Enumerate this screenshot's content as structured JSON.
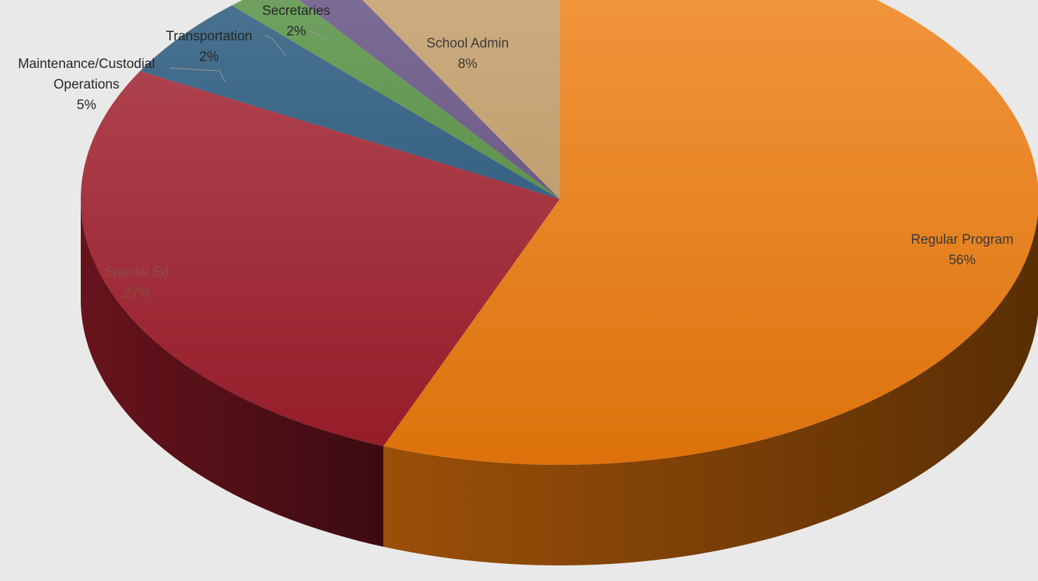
{
  "chart_data": {
    "type": "pie",
    "style": "3d",
    "legend": "none",
    "slices": [
      {
        "label": "Regular Program",
        "line1": "Regular Program",
        "line2": "",
        "value": 56,
        "value_label": "56%",
        "color": "#f07c0c",
        "label_color": "#3a3a3a",
        "callout": false
      },
      {
        "label": "Special Ed",
        "line1": "Special Ed",
        "line2": "",
        "value": 27,
        "value_label": "27%",
        "color": "#a11d2c",
        "label_color": "#8a4d44",
        "callout": false
      },
      {
        "label": "Maintenance/Custodial Operations",
        "line1": "Maintenance/Custodial",
        "line2": "Operations",
        "value": 5,
        "value_label": "5%",
        "color": "#1f5278",
        "label_color": "#262626",
        "callout": true
      },
      {
        "label": "Transportation",
        "line1": "Transportation",
        "line2": "",
        "value": 2,
        "value_label": "2%",
        "color": "#4e8c3a",
        "label_color": "#262626",
        "callout": true
      },
      {
        "label": "Secretaries",
        "line1": "Secretaries",
        "line2": "",
        "value": 2,
        "value_label": "2%",
        "color": "#5e4a7e",
        "label_color": "#262626",
        "callout": true
      },
      {
        "label": "School Admin",
        "line1": "School Admin",
        "line2": "",
        "value": 8,
        "value_label": "8%",
        "color": "#c19a63",
        "label_color": "#3a3a3a",
        "callout": false
      }
    ]
  }
}
